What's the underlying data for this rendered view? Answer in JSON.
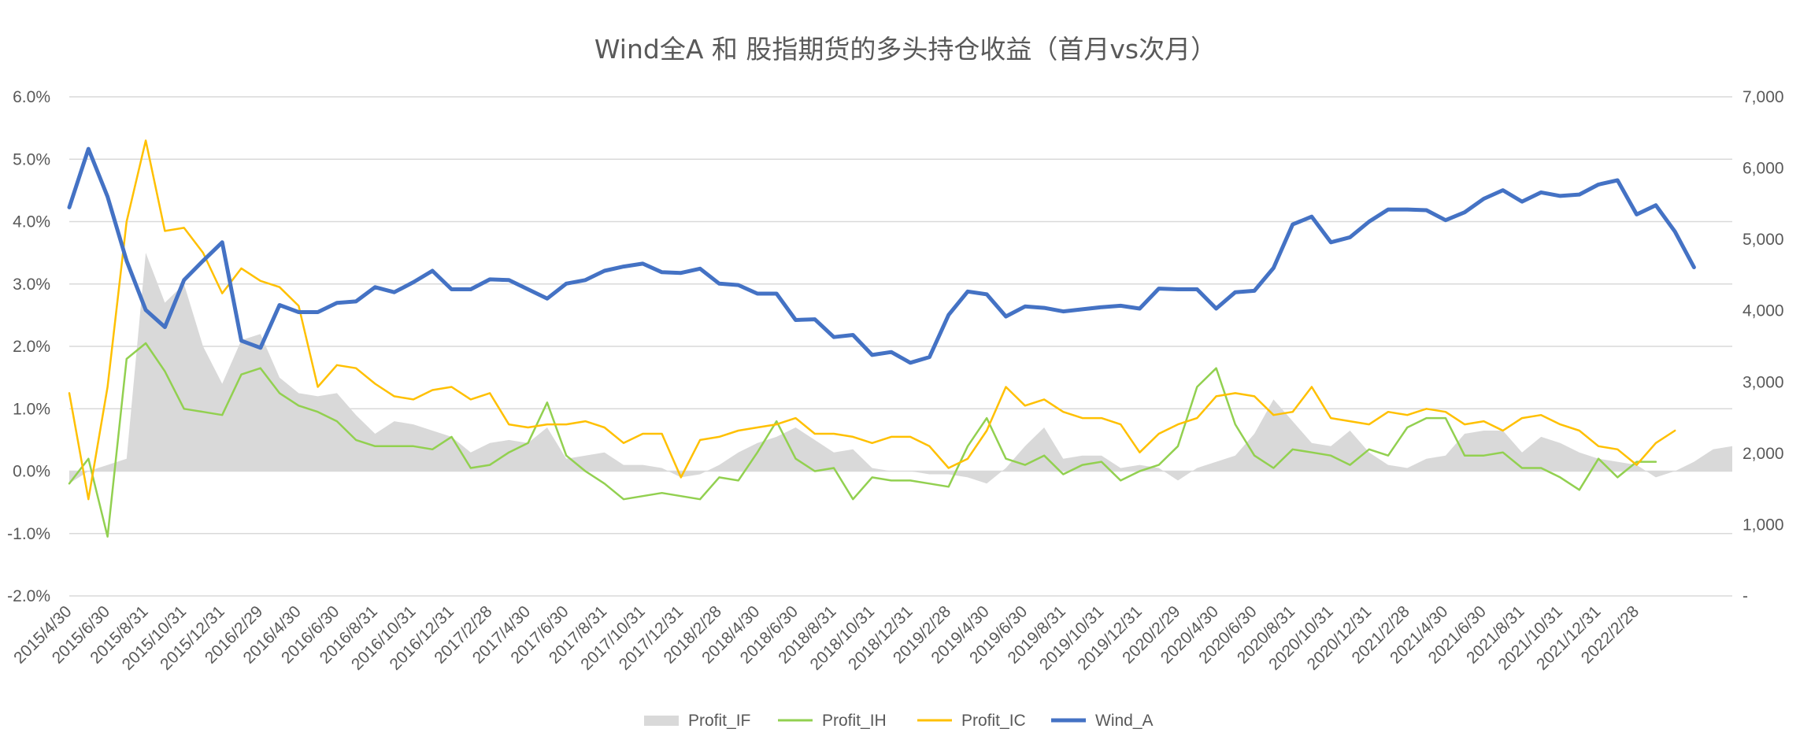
{
  "chart_data": {
    "type": "line",
    "title": "Wind全A 和 股指期货的多头持仓收益（首月vs次月）",
    "y_left": {
      "ticks": [
        "-2.0%",
        "-1.0%",
        "0.0%",
        "1.0%",
        "2.0%",
        "3.0%",
        "4.0%",
        "5.0%",
        "6.0%"
      ],
      "min": -0.02,
      "max": 0.06
    },
    "y_right": {
      "ticks": [
        "-",
        "1,000",
        "2,000",
        "3,000",
        "4,000",
        "5,000",
        "6,000",
        "7,000"
      ],
      "min": 0,
      "max": 7000
    },
    "x_labels": [
      "2015/4/30",
      "2015/6/30",
      "2015/8/31",
      "2015/10/31",
      "2015/12/31",
      "2016/2/29",
      "2016/4/30",
      "2016/6/30",
      "2016/8/31",
      "2016/10/31",
      "2016/12/31",
      "2017/2/28",
      "2017/4/30",
      "2017/6/30",
      "2017/8/31",
      "2017/10/31",
      "2017/12/31",
      "2018/2/28",
      "2018/4/30",
      "2018/6/30",
      "2018/8/31",
      "2018/10/31",
      "2018/12/31",
      "2019/2/28",
      "2019/4/30",
      "2019/6/30",
      "2019/8/31",
      "2019/10/31",
      "2019/12/31",
      "2020/2/29",
      "2020/4/30",
      "2020/6/30",
      "2020/8/31",
      "2020/10/31",
      "2020/12/31",
      "2021/2/28",
      "2021/4/30",
      "2021/6/30",
      "2021/8/31",
      "2021/10/31",
      "2021/12/31",
      "2022/2/28"
    ],
    "legend_position": "bottom",
    "grid": true,
    "series": [
      {
        "name": "Profit_IF",
        "type": "area",
        "axis": "left",
        "color": "#d9d9d9",
        "values": [
          -0.002,
          0.0,
          0.001,
          0.002,
          0.035,
          0.027,
          0.03,
          0.02,
          0.014,
          0.021,
          0.022,
          0.015,
          0.0125,
          0.012,
          0.0125,
          0.009,
          0.006,
          0.008,
          0.0075,
          0.0065,
          0.0055,
          0.003,
          0.0045,
          0.005,
          0.0045,
          0.007,
          0.002,
          0.0025,
          0.003,
          0.001,
          0.001,
          0.0005,
          -0.001,
          -0.0005,
          0.001,
          0.003,
          0.0045,
          0.0055,
          0.007,
          0.005,
          0.003,
          0.0035,
          0.0005,
          0.0,
          0.0,
          -0.0005,
          -0.0005,
          -0.001,
          -0.002,
          0.0005,
          0.004,
          0.007,
          0.002,
          0.0025,
          0.0025,
          0.0005,
          0.001,
          0.0005,
          -0.0015,
          0.0005,
          0.0015,
          0.0025,
          0.006,
          0.0115,
          0.008,
          0.0045,
          0.004,
          0.0065,
          0.003,
          0.001,
          0.0005,
          0.002,
          0.0025,
          0.006,
          0.0065,
          0.0065,
          0.003,
          0.0055,
          0.0045,
          0.003,
          0.002,
          0.0015,
          0.001,
          -0.001,
          0.0,
          0.0015,
          0.0035,
          0.004
        ]
      },
      {
        "name": "Profit_IH",
        "type": "line",
        "axis": "left",
        "color": "#92d050",
        "values": [
          -0.002,
          0.002,
          -0.0105,
          0.018,
          0.0205,
          0.016,
          0.01,
          0.0095,
          0.009,
          0.0155,
          0.0165,
          0.0125,
          0.0105,
          0.0095,
          0.008,
          0.005,
          0.004,
          0.004,
          0.004,
          0.0035,
          0.0055,
          0.0005,
          0.001,
          0.003,
          0.0045,
          0.011,
          0.0025,
          0.0,
          -0.002,
          -0.0045,
          -0.004,
          -0.0035,
          -0.004,
          -0.0045,
          -0.001,
          -0.0015,
          0.003,
          0.008,
          0.002,
          0.0,
          0.0005,
          -0.0045,
          -0.001,
          -0.0015,
          -0.0015,
          -0.002,
          -0.0025,
          0.004,
          0.0085,
          0.002,
          0.001,
          0.0025,
          -0.0005,
          0.001,
          0.0015,
          -0.0015,
          0.0,
          0.001,
          0.004,
          0.0135,
          0.0165,
          0.0075,
          0.0025,
          0.0005,
          0.0035,
          0.003,
          0.0025,
          0.001,
          0.0035,
          0.0025,
          0.007,
          0.0085,
          0.0085,
          0.0025,
          0.0025,
          0.003,
          0.0005,
          0.0005,
          -0.001,
          -0.003,
          0.002,
          -0.001,
          0.0015,
          0.0015
        ]
      },
      {
        "name": "Profit_IC",
        "type": "line",
        "axis": "left",
        "color": "#ffc000",
        "values": [
          0.0125,
          -0.0045,
          0.0135,
          0.04,
          0.053,
          0.0385,
          0.039,
          0.035,
          0.0285,
          0.0325,
          0.0305,
          0.0295,
          0.0265,
          0.0135,
          0.017,
          0.0165,
          0.014,
          0.012,
          0.0115,
          0.013,
          0.0135,
          0.0115,
          0.0125,
          0.0075,
          0.007,
          0.0075,
          0.0075,
          0.008,
          0.007,
          0.0045,
          0.006,
          0.006,
          -0.001,
          0.005,
          0.0055,
          0.0065,
          0.007,
          0.0075,
          0.0085,
          0.006,
          0.006,
          0.0055,
          0.0045,
          0.0055,
          0.0055,
          0.004,
          0.0005,
          0.002,
          0.0065,
          0.0135,
          0.0105,
          0.0115,
          0.0095,
          0.0085,
          0.0085,
          0.0075,
          0.003,
          0.006,
          0.0075,
          0.0085,
          0.012,
          0.0125,
          0.012,
          0.009,
          0.0095,
          0.0135,
          0.0085,
          0.008,
          0.0075,
          0.0095,
          0.009,
          0.01,
          0.0095,
          0.0075,
          0.008,
          0.0065,
          0.0085,
          0.009,
          0.0075,
          0.0065,
          0.004,
          0.0035,
          0.001,
          0.0045,
          0.0065
        ]
      },
      {
        "name": "Wind_A",
        "type": "line",
        "axis": "right",
        "color": "#4472c4",
        "values": [
          5450,
          6270,
          5600,
          4700,
          4010,
          3770,
          4430,
          4700,
          4960,
          3580,
          3480,
          4080,
          3980,
          3980,
          4110,
          4130,
          4330,
          4260,
          4400,
          4560,
          4300,
          4300,
          4440,
          4430,
          4300,
          4170,
          4380,
          4430,
          4560,
          4620,
          4660,
          4540,
          4530,
          4590,
          4380,
          4360,
          4240,
          4240,
          3870,
          3880,
          3630,
          3660,
          3380,
          3420,
          3270,
          3350,
          3940,
          4270,
          4230,
          3920,
          4060,
          4040,
          3990,
          4020,
          4050,
          4070,
          4030,
          4310,
          4300,
          4300,
          4030,
          4260,
          4280,
          4600,
          5210,
          5320,
          4960,
          5030,
          5250,
          5420,
          5420,
          5410,
          5270,
          5380,
          5570,
          5690,
          5530,
          5660,
          5610,
          5630,
          5770,
          5830,
          5350,
          5480,
          5110,
          4610
        ]
      }
    ]
  }
}
